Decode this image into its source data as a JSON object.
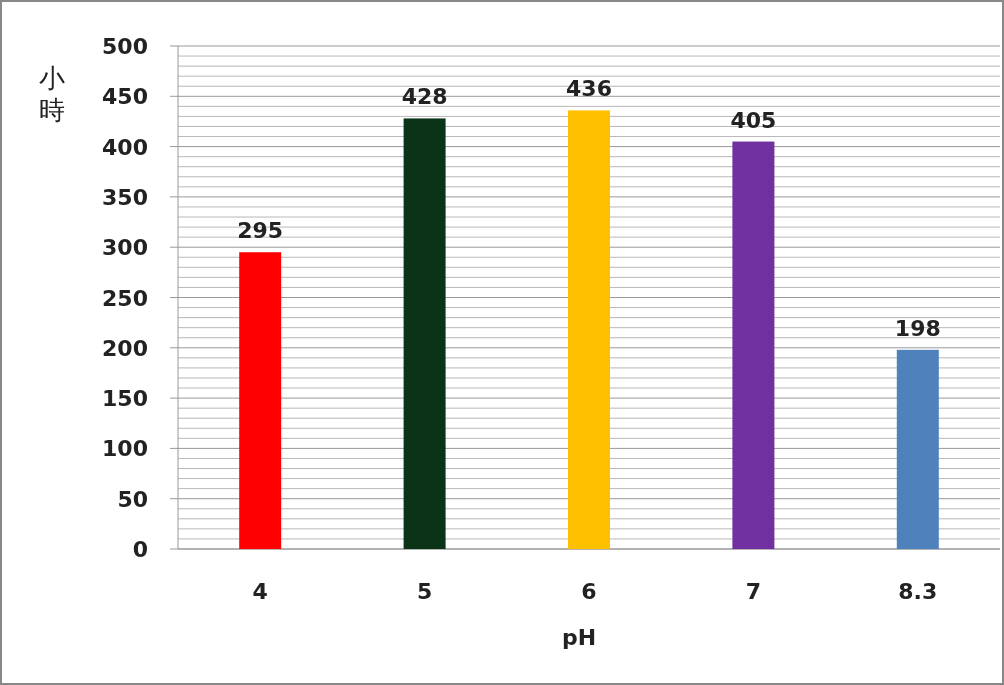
{
  "chart_data": {
    "type": "bar",
    "xlabel": "pH",
    "ylabel": "小時",
    "categories": [
      "4",
      "5",
      "6",
      "7",
      "8.3"
    ],
    "values": [
      295,
      428,
      436,
      405,
      198
    ],
    "colors": [
      "#ff0000",
      "#0a3318",
      "#ffc000",
      "#7030a0",
      "#4f81bd"
    ],
    "ylim": [
      0,
      500
    ],
    "yticks": [
      0,
      {
        "value": 10,
        "label": null
      },
      {
        "value": 20,
        "label": null
      },
      {
        "value": 30,
        "label": null
      },
      {
        "value": 40,
        "label": null
      },
      50,
      {
        "value": 60,
        "label": null
      },
      {
        "value": 70,
        "label": null
      },
      {
        "value": 80,
        "label": null
      },
      {
        "value": 90,
        "label": null
      },
      100,
      {
        "value": 110,
        "label": null
      },
      {
        "value": 120,
        "label": null
      },
      {
        "value": 130,
        "label": null
      },
      {
        "value": 140,
        "label": null
      },
      150,
      {
        "value": 160,
        "label": null
      },
      {
        "value": 170,
        "label": null
      },
      {
        "value": 180,
        "label": null
      },
      {
        "value": 190,
        "label": null
      },
      200,
      {
        "value": 210,
        "label": null
      },
      {
        "value": 220,
        "label": null
      },
      {
        "value": 230,
        "label": null
      },
      {
        "value": 240,
        "label": null
      },
      250,
      {
        "value": 260,
        "label": null
      },
      {
        "value": 270,
        "label": null
      },
      {
        "value": 280,
        "label": null
      },
      {
        "value": 290,
        "label": null
      },
      300,
      {
        "value": 310,
        "label": null
      },
      {
        "value": 320,
        "label": null
      },
      {
        "value": 330,
        "label": null
      },
      {
        "value": 340,
        "label": null
      },
      350,
      {
        "value": 360,
        "label": null
      },
      {
        "value": 370,
        "label": null
      },
      {
        "value": 380,
        "label": null
      },
      {
        "value": 390,
        "label": null
      },
      400,
      {
        "value": 410,
        "label": null
      },
      {
        "value": 420,
        "label": null
      },
      {
        "value": 430,
        "label": null
      },
      {
        "value": 440,
        "label": null
      },
      450,
      {
        "value": 460,
        "label": null
      },
      {
        "value": 470,
        "label": null
      },
      {
        "value": 480,
        "label": null
      },
      {
        "value": 490,
        "label": null
      },
      500
    ],
    "grid": "y",
    "data_labels": true
  }
}
